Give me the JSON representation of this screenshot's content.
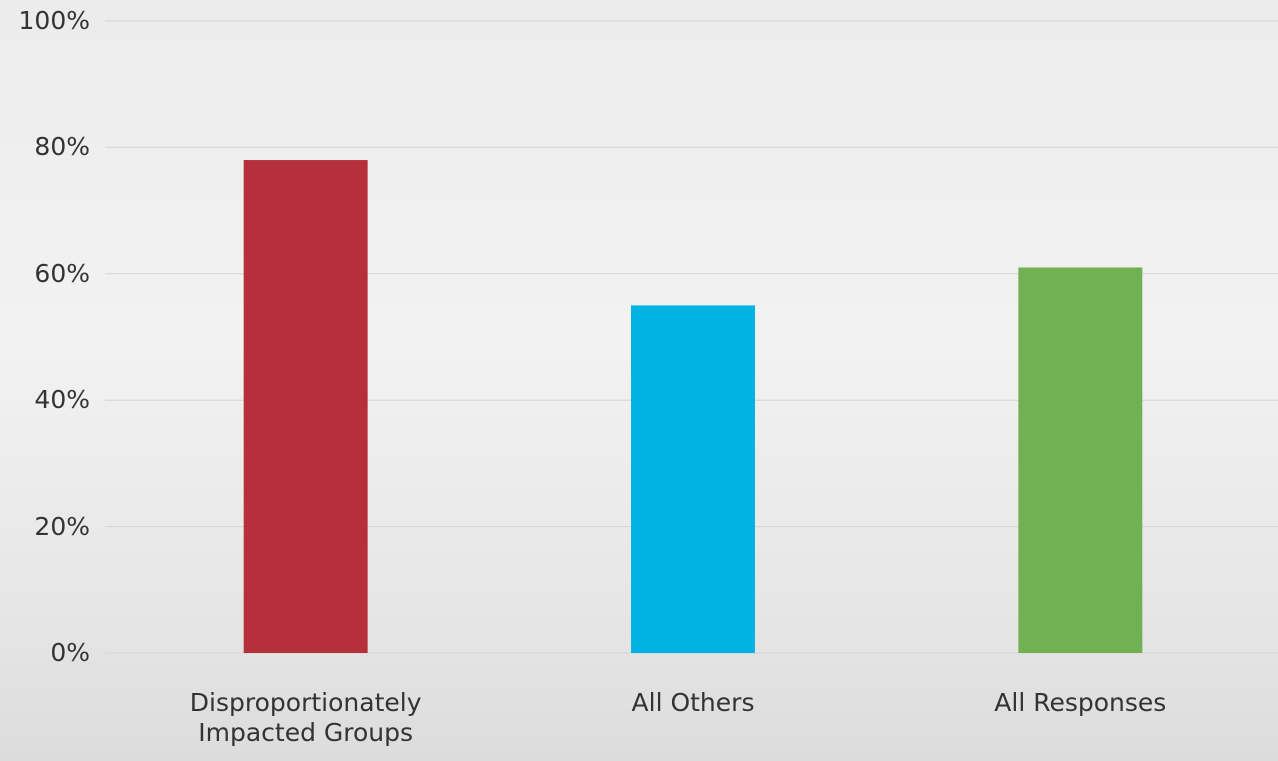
{
  "chart_data": {
    "type": "bar",
    "categories": [
      "Disproportionately Impacted Groups",
      "All Others",
      "All Responses"
    ],
    "values": [
      78,
      55,
      61
    ],
    "colors": [
      "#b5303b",
      "#00b3e3",
      "#72b153"
    ],
    "ylim": [
      0,
      100
    ],
    "yticks": [
      {
        "value": 0,
        "label": "0%"
      },
      {
        "value": 20,
        "label": "20%"
      },
      {
        "value": 40,
        "label": "40%"
      },
      {
        "value": 60,
        "label": "60%"
      },
      {
        "value": 80,
        "label": "80%"
      },
      {
        "value": 100,
        "label": "100%"
      }
    ],
    "grid": true
  }
}
